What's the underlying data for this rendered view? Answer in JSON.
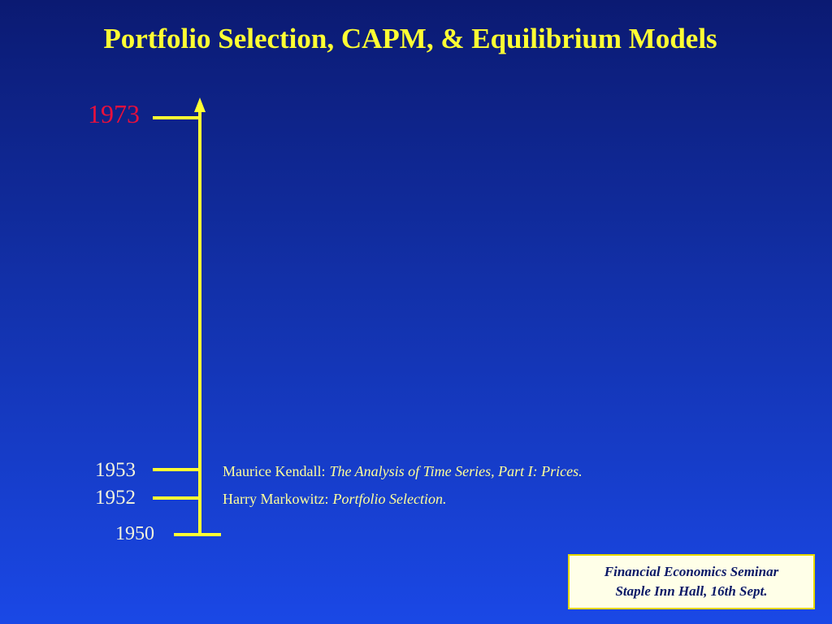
{
  "header": {
    "title": "Portfolio Selection, CAPM, & Equilibrium Models"
  },
  "timeline": {
    "years": [
      "1973",
      "1953",
      "1952",
      "1950"
    ],
    "events": [
      {
        "author": "Maurice Kendall:",
        "work": "The Analysis of Time Series, Part I: Prices."
      },
      {
        "author": "Harry Markowitz:",
        "work": "Portfolio Selection."
      }
    ]
  },
  "footer": {
    "lines": [
      "Financial Economics Seminar",
      "Staple Inn Hall, 16th Sept."
    ]
  }
}
